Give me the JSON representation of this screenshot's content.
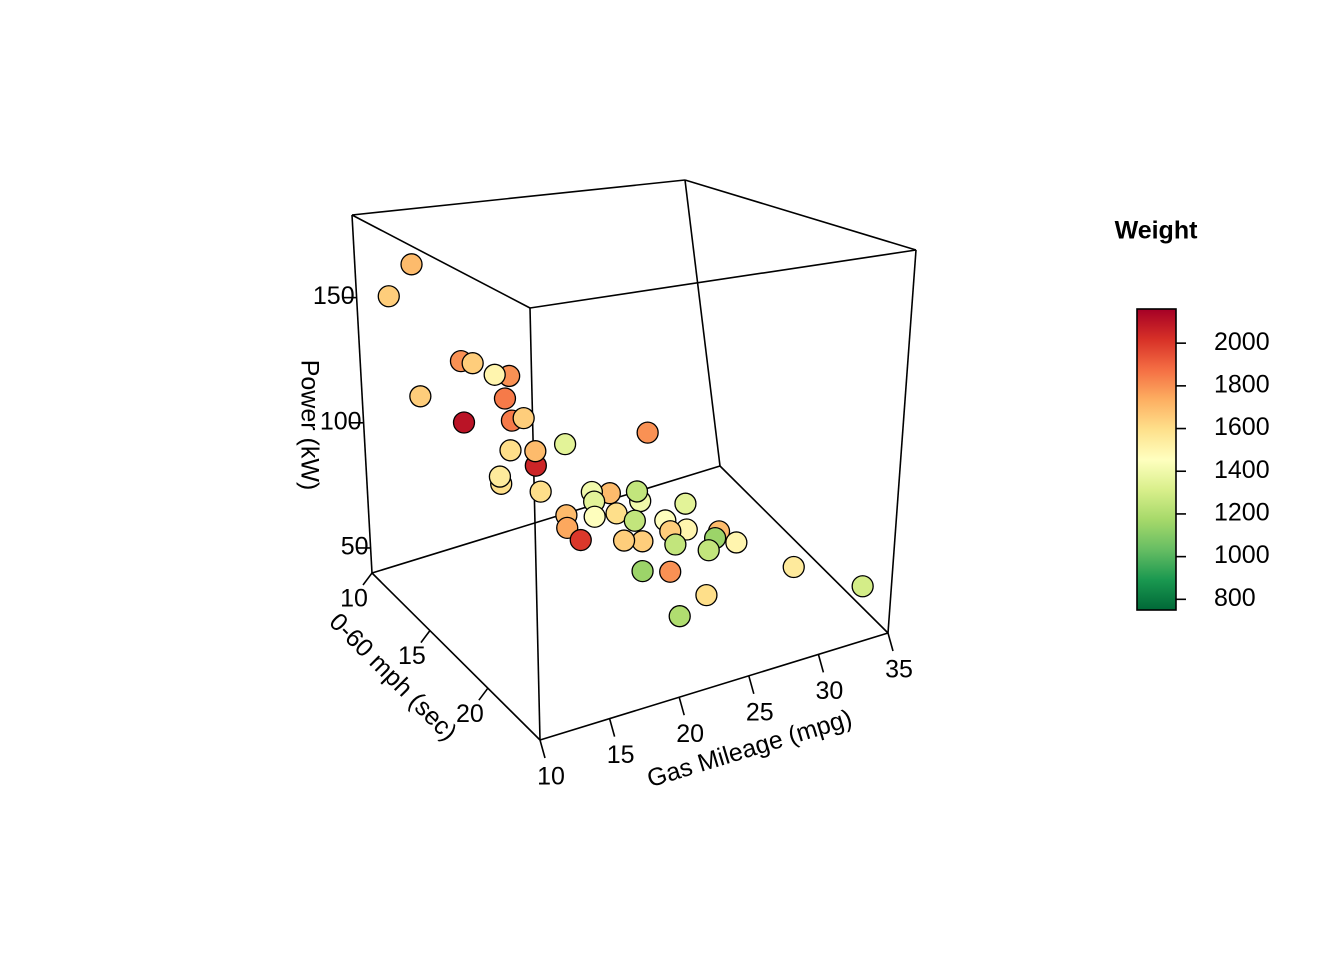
{
  "chart_data": {
    "type": "scatter3d",
    "x_label": "Gas Mileage (mpg)",
    "y_label": "0-60 mph (sec)",
    "z_label": "Power (kW)",
    "x": [
      13.3,
      11.5,
      15.6,
      16.0,
      19.0,
      17.1,
      18.6,
      11.7,
      16.4,
      19.0,
      19.0,
      19.7,
      17.1,
      21.0,
      20.5,
      28.6,
      15.5,
      14.6,
      19.1,
      21.9,
      24.0,
      25.1,
      21.2,
      25.3,
      24.4,
      28.5,
      19.2,
      21.2,
      23.2,
      26.2,
      18.4,
      25.7,
      27.7,
      30.8,
      29.7,
      28.4,
      22.4,
      23.7,
      25.2,
      31.2,
      18.5,
      22.0,
      24.8,
      32.8,
      34.3,
      25.7,
      22.1
    ],
    "y": [
      11,
      11,
      12,
      12.5,
      12,
      13,
      12,
      13,
      11,
      12,
      13,
      13,
      14,
      14,
      12,
      12,
      15,
      16,
      14,
      15,
      14,
      15,
      16,
      15,
      14,
      15,
      16,
      16,
      17,
      16,
      17,
      17,
      16,
      15,
      16,
      17,
      17,
      17,
      18,
      16,
      18,
      19,
      18,
      19,
      23,
      20,
      22
    ],
    "z": [
      163.7,
      152.3,
      125.5,
      125.9,
      115.6,
      121.7,
      106.7,
      119.1,
      95.8,
      97.0,
      101.8,
      87.3,
      95.0,
      92.3,
      76.0,
      77.8,
      87.7,
      95.3,
      75.7,
      75.5,
      67.6,
      70.9,
      76.7,
      66.6,
      58.5,
      60.3,
      74.2,
      70.7,
      70.2,
      61.5,
      74.4,
      62.2,
      55.3,
      44.4,
      48.3,
      50.1,
      63.6,
      61.3,
      61.9,
      43.8,
      73.5,
      60.6,
      51.8,
      44.9,
      52.4,
      49.9,
      55.7
    ],
    "colorbar": {
      "title": "Weight",
      "values": [
        1700,
        1650,
        1800,
        1650,
        1800,
        1500,
        1850,
        1650,
        2100,
        1850,
        1650,
        1700,
        1600,
        1350,
        2050,
        1800,
        1600,
        1550,
        1600,
        1400,
        1700,
        1250,
        1350,
        1400,
        1600,
        1350,
        1700,
        1450,
        1250,
        1450,
        1750,
        1650,
        1500,
        1700,
        1150,
        1250,
        1650,
        1650,
        1250,
        1500,
        2000,
        1150,
        1800,
        1550,
        1300,
        1600,
        1200
      ],
      "lim": [
        750,
        2160
      ],
      "ticks": [
        800,
        1000,
        1200,
        1400,
        1600,
        1800,
        2000
      ],
      "colors": [
        "#006837",
        "#1a9850",
        "#66bd63",
        "#a6d96a",
        "#d9ef8b",
        "#ffffbf",
        "#fee08b",
        "#fdae61",
        "#f46d43",
        "#d73027",
        "#a50026"
      ]
    },
    "xlim": [
      10,
      35
    ],
    "xticks": [
      10,
      15,
      20,
      25,
      30,
      35
    ],
    "ylim": [
      10,
      24.5
    ],
    "yticks": [
      10,
      15,
      20
    ],
    "zlim": [
      40,
      183
    ],
    "zticks": [
      50,
      100,
      150
    ]
  }
}
